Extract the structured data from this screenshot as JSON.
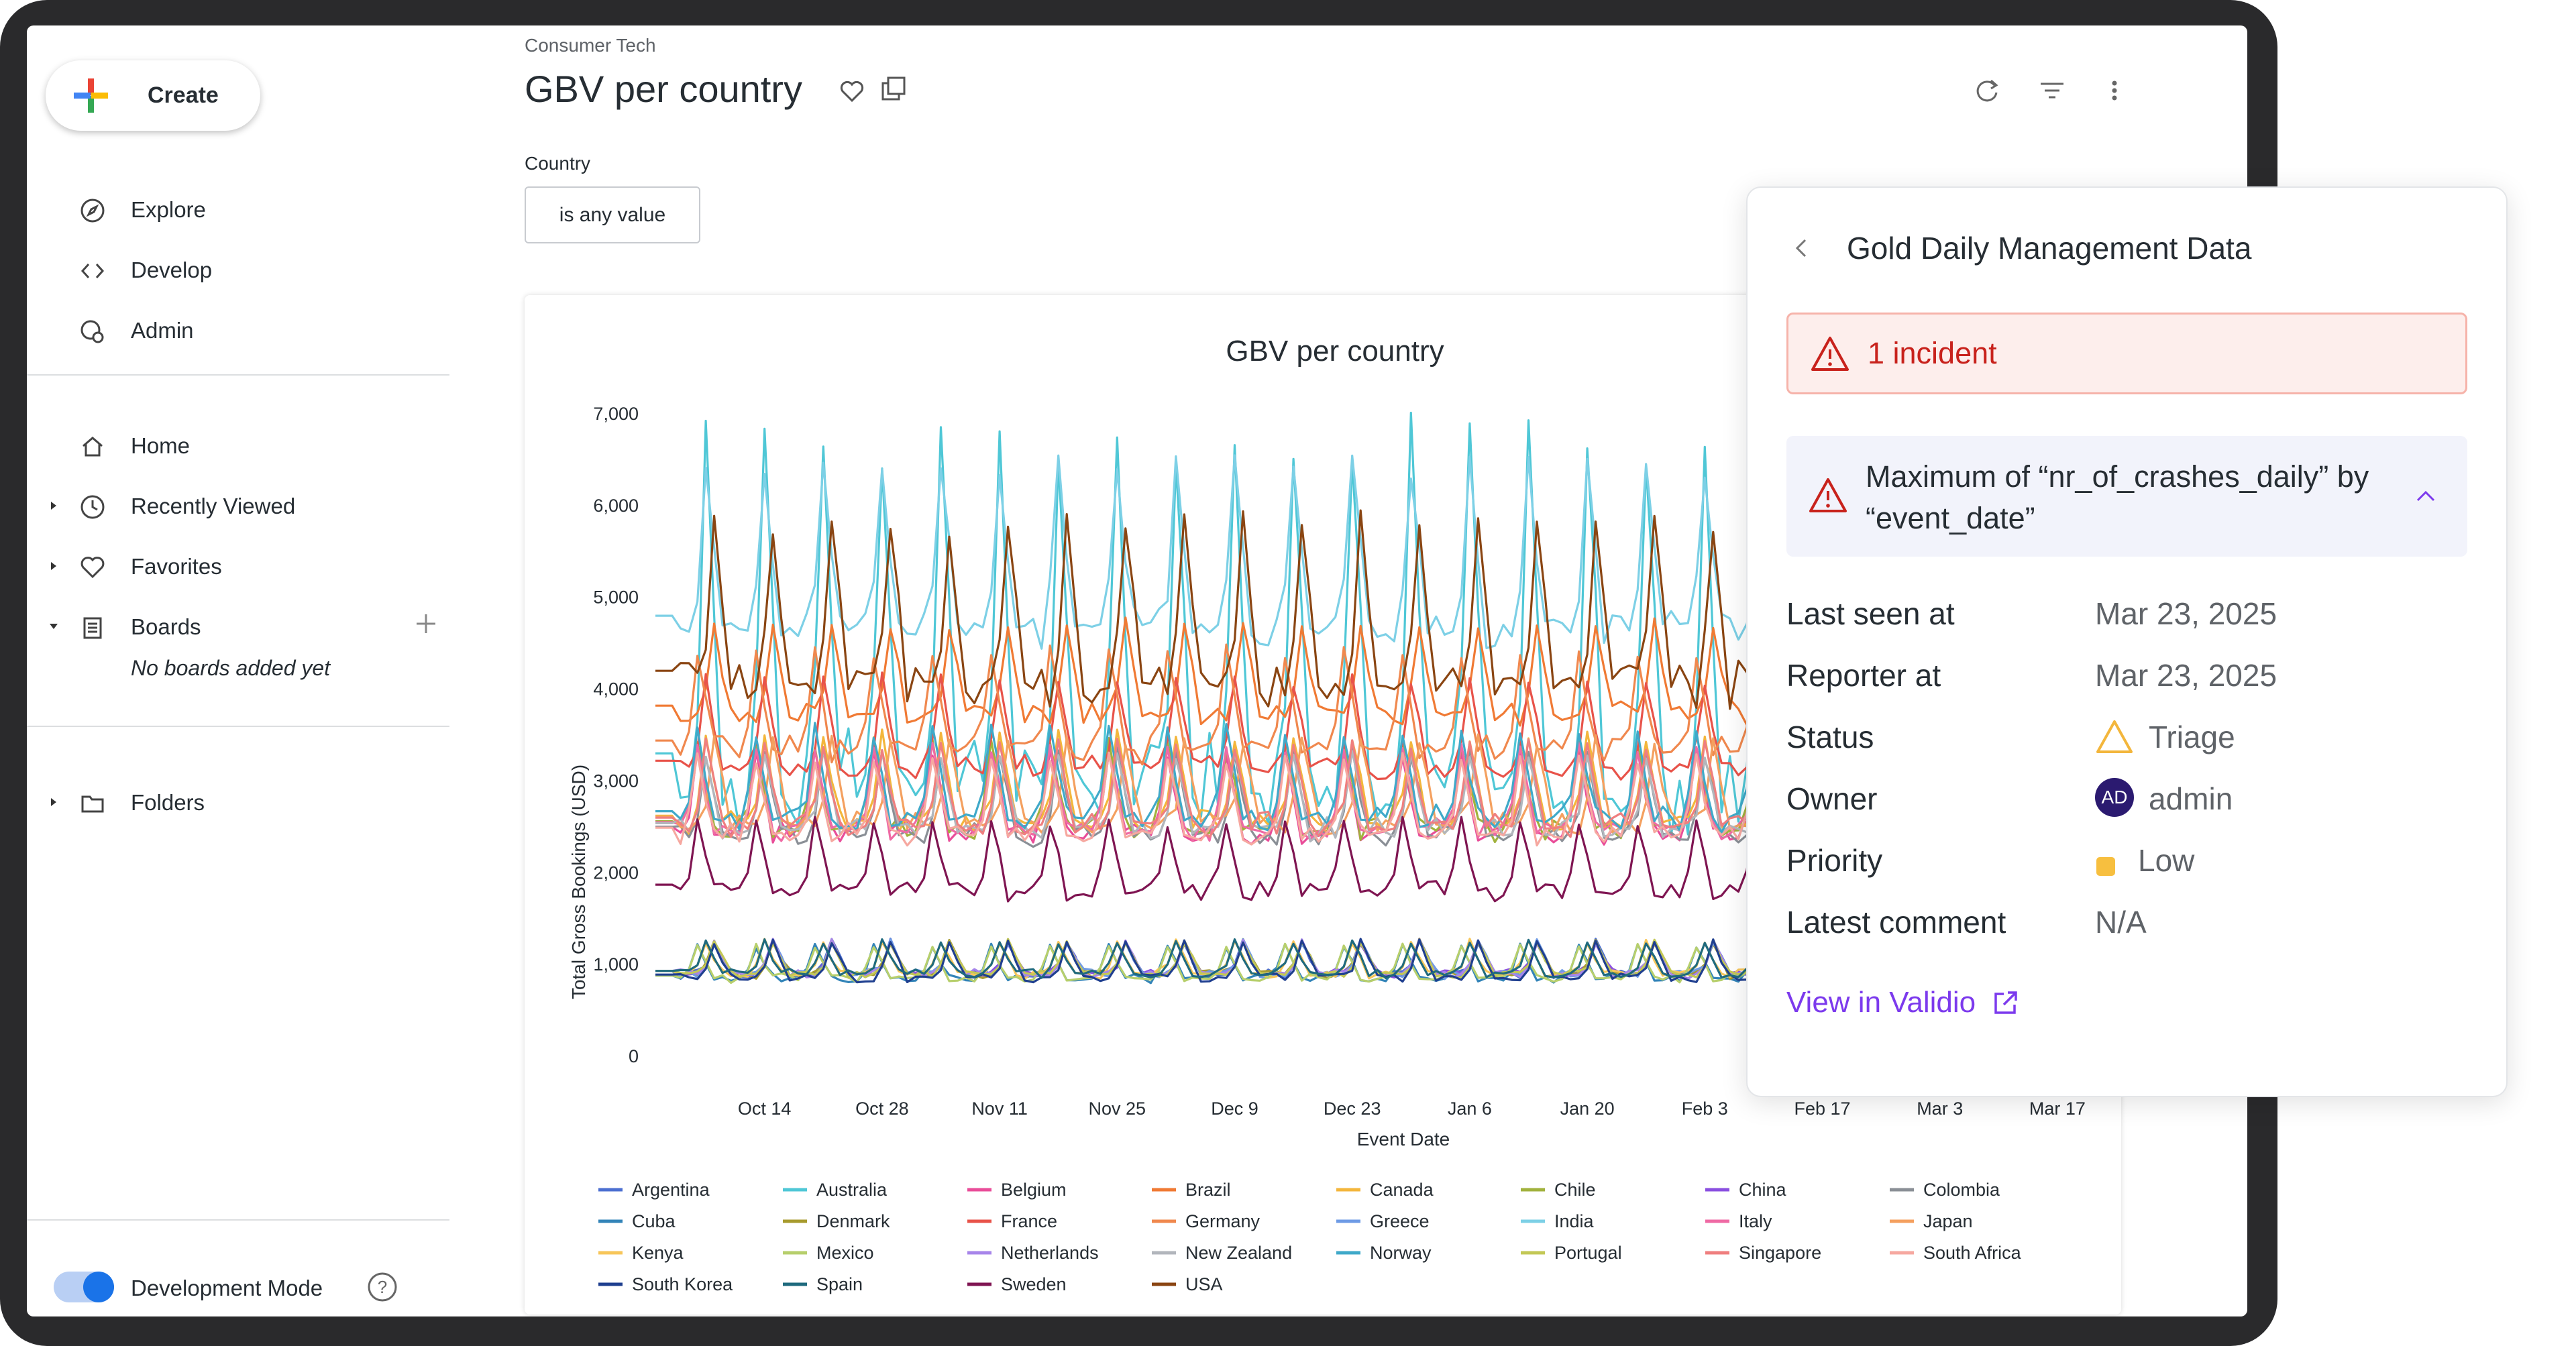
{
  "sidebar": {
    "create_label": "Create",
    "nav_top": [
      {
        "label": "Explore",
        "icon": "compass-icon"
      },
      {
        "label": "Develop",
        "icon": "code-icon"
      },
      {
        "label": "Admin",
        "icon": "admin-icon"
      }
    ],
    "nav_main": [
      {
        "label": "Home",
        "icon": "home-icon"
      },
      {
        "label": "Recently Viewed",
        "icon": "clock-icon"
      },
      {
        "label": "Favorites",
        "icon": "heart-icon"
      },
      {
        "label": "Boards",
        "icon": "boards-icon"
      }
    ],
    "no_boards": "No boards added yet",
    "folders_label": "Folders",
    "dev_mode_label": "Development Mode",
    "dev_mode_on": true
  },
  "header": {
    "breadcrumb": "Consumer Tech",
    "title": "GBV per country"
  },
  "filter": {
    "label": "Country",
    "value": "is any value"
  },
  "panel": {
    "title": "Gold Daily Management Data",
    "incident": "1 incident",
    "metric": "Maximum of “nr_of_crashes_daily” by “event_date”",
    "rows": [
      {
        "key": "Last seen at",
        "value": "Mar 23, 2025"
      },
      {
        "key": "Reporter at",
        "value": "Mar 23, 2025"
      },
      {
        "key": "Status",
        "value": "Triage"
      },
      {
        "key": "Owner",
        "value": "admin"
      },
      {
        "key": "Priority",
        "value": "Low"
      },
      {
        "key": "Latest comment",
        "value": "N/A"
      }
    ],
    "owner_initials": "AD",
    "view_link": "View in Validio",
    "colors": {
      "incident": "#c8221c",
      "link": "#7c3aed",
      "priority": "#f7bf3f"
    }
  },
  "chart_data": {
    "type": "line",
    "title": "GBV per country",
    "xlabel": "Event Date",
    "ylabel": "Total Gross Bookings (USD)",
    "ylim": [
      0,
      7000
    ],
    "y_ticks": [
      "0",
      "1,000",
      "2,000",
      "3,000",
      "4,000",
      "5,000",
      "6,000",
      "7,000"
    ],
    "x_ticks": [
      "Oct 14",
      "Oct 28",
      "Nov 11",
      "Nov 25",
      "Dec 9",
      "Dec 23",
      "Jan 6",
      "Jan 20",
      "Feb 3",
      "Feb 17",
      "Mar 3",
      "Mar 17"
    ],
    "x_range": [
      "2024-10-01",
      "2025-03-23"
    ],
    "weekly_period_days": 7,
    "series": [
      {
        "name": "Argentina",
        "color": "#4c6fd1",
        "base": 850,
        "peak": 1250
      },
      {
        "name": "Australia",
        "color": "#4fc7d6",
        "base": 2450,
        "peak": 6700
      },
      {
        "name": "Belgium",
        "color": "#e94d99",
        "base": 2300,
        "peak": 3300
      },
      {
        "name": "Brazil",
        "color": "#f07a34",
        "base": 3600,
        "peak": 4700
      },
      {
        "name": "Canada",
        "color": "#f3b63c",
        "base": 2400,
        "peak": 3500
      },
      {
        "name": "Chile",
        "color": "#a1b23d",
        "base": 2350,
        "peak": 3400
      },
      {
        "name": "China",
        "color": "#8a4fe0",
        "base": 850,
        "peak": 1250
      },
      {
        "name": "Colombia",
        "color": "#8a8f96",
        "base": 2300,
        "peak": 3300
      },
      {
        "name": "Cuba",
        "color": "#3384b8",
        "base": 800,
        "peak": 1200
      },
      {
        "name": "Denmark",
        "color": "#a79b2e",
        "base": 850,
        "peak": 1250
      },
      {
        "name": "France",
        "color": "#e8534a",
        "base": 3000,
        "peak": 4100
      },
      {
        "name": "Germany",
        "color": "#f0884e",
        "base": 3200,
        "peak": 4400
      },
      {
        "name": "Greece",
        "color": "#6e9be5",
        "base": 850,
        "peak": 1250
      },
      {
        "name": "India",
        "color": "#7dd0e6",
        "base": 4400,
        "peak": 6400
      },
      {
        "name": "Italy",
        "color": "#ef6aa4",
        "base": 2350,
        "peak": 3350
      },
      {
        "name": "Japan",
        "color": "#f4a05f",
        "base": 2400,
        "peak": 3450
      },
      {
        "name": "Kenya",
        "color": "#f7c65a",
        "base": 850,
        "peak": 1250
      },
      {
        "name": "Mexico",
        "color": "#b7cf6c",
        "base": 800,
        "peak": 1200
      },
      {
        "name": "Netherlands",
        "color": "#a785ea",
        "base": 850,
        "peak": 1250
      },
      {
        "name": "New Zealand",
        "color": "#b2b6bc",
        "base": 2350,
        "peak": 3300
      },
      {
        "name": "Norway",
        "color": "#3fa9c9",
        "base": 2450,
        "peak": 3550
      },
      {
        "name": "Portugal",
        "color": "#c3c856",
        "base": 850,
        "peak": 1250
      },
      {
        "name": "Singapore",
        "color": "#ef7f7f",
        "base": 2400,
        "peak": 3400
      },
      {
        "name": "South Africa",
        "color": "#f6a8a0",
        "base": 2300,
        "peak": 3250
      },
      {
        "name": "South Korea",
        "color": "#1f3f8f",
        "base": 800,
        "peak": 1250
      },
      {
        "name": "Spain",
        "color": "#1f6a7e",
        "base": 850,
        "peak": 1250
      },
      {
        "name": "Sweden",
        "color": "#7f1552",
        "base": 1700,
        "peak": 2550
      },
      {
        "name": "USA",
        "color": "#8a4512",
        "base": 3800,
        "peak": 5800
      }
    ]
  }
}
